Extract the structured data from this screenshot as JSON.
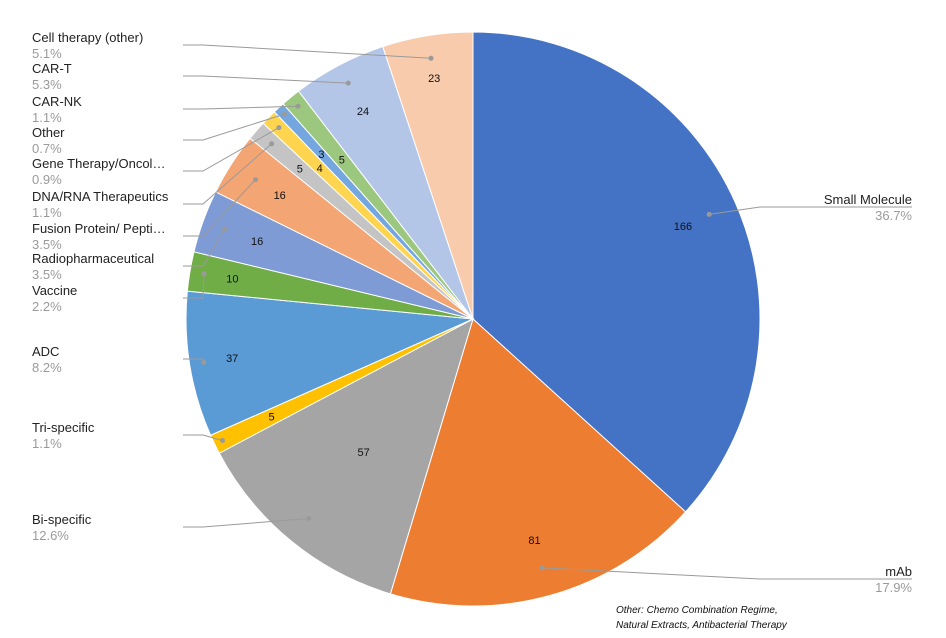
{
  "chart_data": {
    "type": "pie",
    "title": "",
    "start_angle_deg": 0,
    "direction": "clockwise",
    "slices": [
      {
        "name": "Small Molecule",
        "value": 166,
        "percent": "36.7%",
        "color": "#4472C4"
      },
      {
        "name": "mAb",
        "value": 81,
        "percent": "17.9%",
        "color": "#ED7D31"
      },
      {
        "name": "Bi-specific",
        "value": 57,
        "percent": "12.6%",
        "color": "#A5A5A5"
      },
      {
        "name": "Tri-specific",
        "value": 5,
        "percent": "1.1%",
        "color": "#FFC000"
      },
      {
        "name": "ADC",
        "value": 37,
        "percent": "8.2%",
        "color": "#5B9BD5"
      },
      {
        "name": "Vaccine",
        "value": 10,
        "percent": "2.2%",
        "color": "#70AD47"
      },
      {
        "name": "Radiopharmaceutical",
        "value": 16,
        "percent": "3.5%",
        "color": "#7F9BD5"
      },
      {
        "name": "Fusion Protein/ Pepti…",
        "value": 16,
        "percent": "3.5%",
        "color": "#F4A574"
      },
      {
        "name": "DNA/RNA Therapeutics",
        "value": 5,
        "percent": "1.1%",
        "color": "#C4C4C4"
      },
      {
        "name": "Gene Therapy/Oncol…",
        "value": 4,
        "percent": "0.9%",
        "color": "#FFD54F"
      },
      {
        "name": "Other",
        "value": 3,
        "percent": "0.7%",
        "color": "#74A7DF"
      },
      {
        "name": "CAR-NK",
        "value": 5,
        "percent": "1.1%",
        "color": "#9CC77E"
      },
      {
        "name": "CAR-T",
        "value": 24,
        "percent": "5.3%",
        "color": "#B4C6E7"
      },
      {
        "name": "Cell therapy (other)",
        "value": 23,
        "percent": "5.1%",
        "color": "#F8CBAD"
      }
    ]
  },
  "footnote": "Other: Chemo Combination Regime,\nNatural Extracts, Antibacterial Therapy"
}
